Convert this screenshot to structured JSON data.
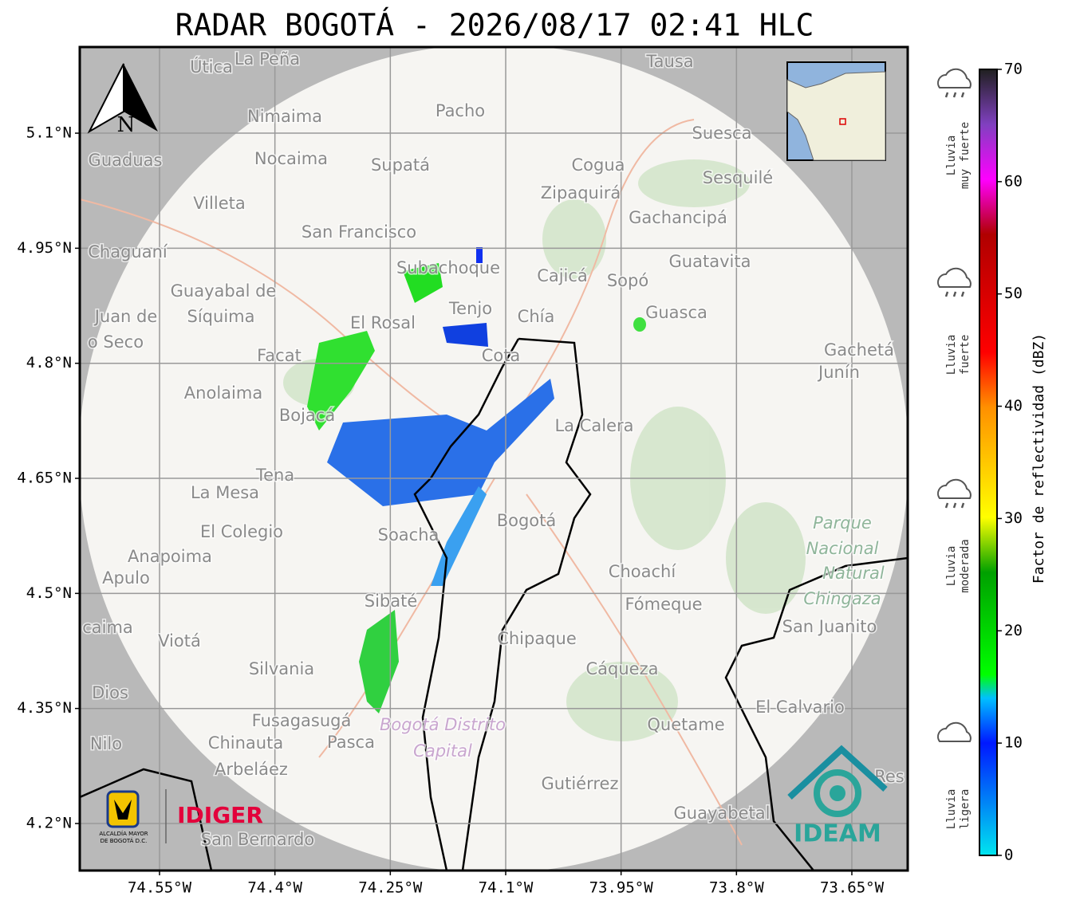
{
  "title": "RADAR BOGOTÁ - 2026/08/17 02:41 HLC",
  "map": {
    "xlim": [
      -74.6537,
      -73.5774
    ],
    "ylim": [
      4.1387,
      5.2123
    ],
    "xticks": [
      {
        "value": -74.55,
        "label": "74.55°W"
      },
      {
        "value": -74.4,
        "label": "74.4°W"
      },
      {
        "value": -74.25,
        "label": "74.25°W"
      },
      {
        "value": -74.1,
        "label": "74.1°W"
      },
      {
        "value": -73.95,
        "label": "73.95°W"
      },
      {
        "value": -73.8,
        "label": "73.8°W"
      },
      {
        "value": -73.65,
        "label": "73.65°W"
      }
    ],
    "yticks": [
      {
        "value": 5.1,
        "label": "5.1°N"
      },
      {
        "value": 4.95,
        "label": "4.95°N"
      },
      {
        "value": 4.8,
        "label": "4.8°N"
      },
      {
        "value": 4.65,
        "label": "4.65°N"
      },
      {
        "value": 4.5,
        "label": "4.5°N"
      },
      {
        "value": 4.35,
        "label": "4.35°N"
      },
      {
        "value": 4.2,
        "label": "4.2°N"
      }
    ],
    "grid": true,
    "north": "N",
    "places": [
      "Útica",
      "La Peña",
      "Tausa",
      "Pacho",
      "Nimaima",
      "Suesca",
      "Guaduas",
      "Nocaima",
      "Supatá",
      "Cogua",
      "Sesquilé",
      "Zipaquirá",
      "Villeta",
      "Gachancipá",
      "San Francisco",
      "Chaguaní",
      "Subachoque",
      "Guatavita",
      "Cajicá",
      "Sopó",
      "Guayabal de",
      "Tenjo",
      "Chía",
      "Guasca",
      "Juan de",
      "Síquima",
      "El Rosal",
      "o Seco",
      "Facat",
      "Cota",
      "Gachetá",
      "Junín",
      "Anolaima",
      "Bojacá",
      "La Calera",
      "Tena",
      "La Mesa",
      "Bogotá",
      "Parque",
      "Nacional",
      "Natural",
      "Chingaza",
      "El Colegio",
      "Soacha",
      "Anapoima",
      "Apulo",
      "Choachí",
      "Sibaté",
      "Fómeque",
      "San Juanito",
      "caima",
      "Viotá",
      "Chipaque",
      "Silvania",
      "Cáqueza",
      "Dios",
      "El Calvario",
      "Fusagasugá",
      "Quetame",
      "Nilo",
      "Chinauta",
      "Pasca",
      "Arbeláez",
      "Gutiérrez",
      "Res",
      "Guayabetal",
      "San Bernardo"
    ],
    "district": [
      "Bogotá Distrito",
      "Capital"
    ]
  },
  "colorbar": {
    "label": "Factor de reflectividad (dBZ)",
    "lim": [
      0,
      70
    ],
    "ticks": [
      0,
      10,
      20,
      30,
      40,
      50,
      60,
      70
    ],
    "categories": [
      [
        "Lluvia",
        "muy fuerte"
      ],
      [
        "Lluvia",
        "fuerte"
      ],
      [
        "Lluvia",
        "moderada"
      ],
      [
        "Lluvia",
        "ligera"
      ]
    ]
  },
  "logos": {
    "idiger": "IDIGER",
    "ideam": "IDEAM",
    "alcaldia": [
      "ALCALDÍA MAYOR",
      "DE BOGOTÁ D.C."
    ]
  }
}
